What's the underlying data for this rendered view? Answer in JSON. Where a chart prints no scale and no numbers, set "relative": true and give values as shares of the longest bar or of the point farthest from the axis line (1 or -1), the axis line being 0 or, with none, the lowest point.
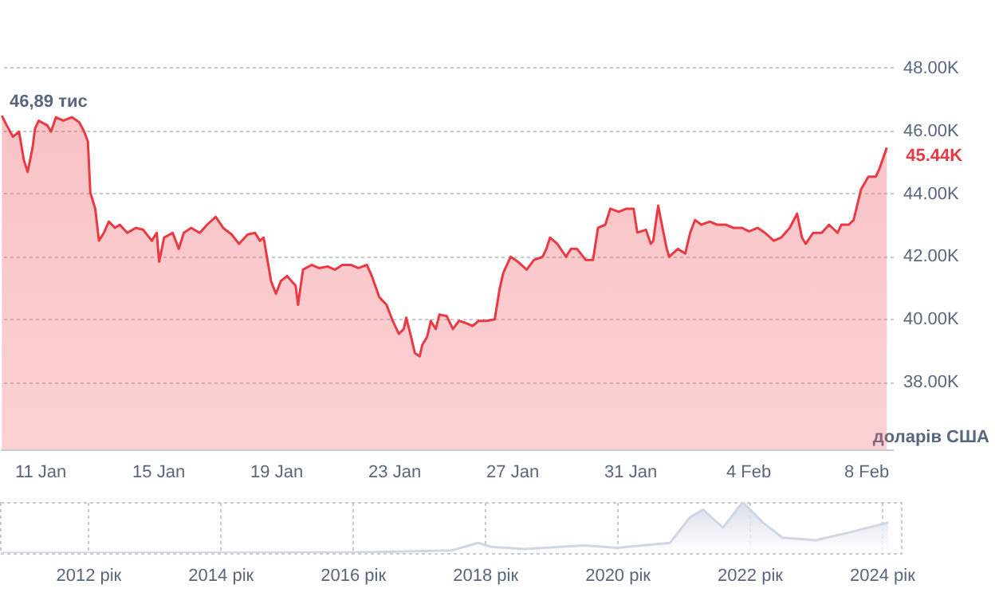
{
  "chart_data": [
    {
      "type": "area",
      "ylabel": "доларів США",
      "grid": "y",
      "x": [
        "2024-01-09T17:00",
        "2024-01-09T21:00",
        "2024-01-10T02:00",
        "2024-01-10T07:00",
        "2024-01-10T11:00",
        "2024-01-10T14:00",
        "2024-01-10T18:00",
        "2024-01-10T20:00",
        "2024-01-10T23:00",
        "2024-01-11T06:00",
        "2024-01-11T09:00",
        "2024-01-11T13:00",
        "2024-01-11T19:00",
        "2024-01-12T02:00",
        "2024-01-12T08:00",
        "2024-01-12T12:00",
        "2024-01-12T15:00",
        "2024-01-12T17:00",
        "2024-01-12T21:00",
        "2024-01-13T00:00",
        "2024-01-13T04:00",
        "2024-01-13T08:00",
        "2024-01-13T13:00",
        "2024-01-13T17:00",
        "2024-01-13T23:00",
        "2024-01-14T06:00",
        "2024-01-14T12:00",
        "2024-01-14T19:00",
        "2024-01-14T23:00",
        "2024-01-15T01:00",
        "2024-01-15T05:00",
        "2024-01-15T12:00",
        "2024-01-15T17:00",
        "2024-01-15T21:00",
        "2024-01-16T03:00",
        "2024-01-16T10:00",
        "2024-01-16T16:00",
        "2024-01-16T23:00",
        "2024-01-17T05:00",
        "2024-01-17T12:00",
        "2024-01-17T18:00",
        "2024-01-18T01:00",
        "2024-01-18T07:00",
        "2024-01-18T11:00",
        "2024-01-18T14:00",
        "2024-01-18T20:00",
        "2024-01-19T00:00",
        "2024-01-19T04:00",
        "2024-01-19T09:00",
        "2024-01-19T16:00",
        "2024-01-19T18:00",
        "2024-01-19T22:00",
        "2024-01-20T05:00",
        "2024-01-20T11:00",
        "2024-01-20T18:00",
        "2024-01-21T00:00",
        "2024-01-21T06:00",
        "2024-01-21T13:00",
        "2024-01-21T19:00",
        "2024-01-22T02:00",
        "2024-01-22T06:00",
        "2024-01-22T12:00",
        "2024-01-22T18:00",
        "2024-01-22T23:00",
        "2024-01-23T04:00",
        "2024-01-23T08:00",
        "2024-01-23T10:00",
        "2024-01-23T14:00",
        "2024-01-23T17:00",
        "2024-01-23T21:00",
        "2024-01-23T23:00",
        "2024-01-24T03:00",
        "2024-01-24T06:00",
        "2024-01-24T10:00",
        "2024-01-24T13:00",
        "2024-01-24T19:00",
        "2024-01-25T00:00",
        "2024-01-25T05:00",
        "2024-01-25T10:00",
        "2024-01-25T16:00",
        "2024-01-25T21:00",
        "2024-01-26T03:00",
        "2024-01-26T10:00",
        "2024-01-26T14:00",
        "2024-01-26T17:00",
        "2024-01-26T23:00",
        "2024-01-27T05:00",
        "2024-01-27T12:00",
        "2024-01-27T18:00",
        "2024-01-28T01:00",
        "2024-01-28T04:00",
        "2024-01-28T07:00",
        "2024-01-28T13:00",
        "2024-01-28T20:00",
        "2024-01-29T00:00",
        "2024-01-29T05:00",
        "2024-01-29T12:00",
        "2024-01-29T18:00",
        "2024-01-29T22:00",
        "2024-01-30T04:00",
        "2024-01-30T08:00",
        "2024-01-30T15:00",
        "2024-01-30T21:00",
        "2024-01-31T03:00",
        "2024-01-31T06:00",
        "2024-01-31T13:00",
        "2024-01-31T17:00",
        "2024-01-31T19:00",
        "2024-01-31T23:00",
        "2024-02-01T02:00",
        "2024-02-01T06:00",
        "2024-02-01T08:00",
        "2024-02-01T15:00",
        "2024-02-01T21:00",
        "2024-02-02T01:00",
        "2024-02-02T05:00",
        "2024-02-02T10:00",
        "2024-02-02T17:00",
        "2024-02-02T23:00",
        "2024-02-03T06:00",
        "2024-02-03T12:00",
        "2024-02-03T19:00",
        "2024-02-04T01:00",
        "2024-02-04T08:00",
        "2024-02-04T14:00",
        "2024-02-04T21:00",
        "2024-02-05T03:00",
        "2024-02-05T10:00",
        "2024-02-05T16:00",
        "2024-02-05T20:00",
        "2024-02-05T23:00",
        "2024-02-06T05:00",
        "2024-02-06T12:00",
        "2024-02-06T18:00",
        "2024-02-07T01:00",
        "2024-02-07T04:00",
        "2024-02-07T10:00",
        "2024-02-07T14:00",
        "2024-02-07T20:00",
        "2024-02-08T02:00",
        "2024-02-08T08:00",
        "2024-02-08T11:00",
        "2024-02-08T17:00"
      ],
      "series": [
        {
          "color": "#ea3943",
          "values": [
            46470,
            46160,
            45800,
            45960,
            45040,
            44680,
            45450,
            46060,
            46310,
            46160,
            45960,
            46420,
            46310,
            46420,
            46260,
            45960,
            45650,
            44020,
            43510,
            42490,
            42740,
            43100,
            42900,
            43000,
            42740,
            42900,
            42840,
            42490,
            42740,
            41820,
            42590,
            42740,
            42230,
            42740,
            42900,
            42740,
            43000,
            43250,
            42900,
            42690,
            42390,
            42690,
            42740,
            42490,
            42590,
            41210,
            40800,
            41210,
            41370,
            41060,
            40450,
            41570,
            41720,
            41620,
            41670,
            41570,
            41720,
            41720,
            41620,
            41720,
            41370,
            40700,
            40450,
            39940,
            39530,
            39680,
            40040,
            39430,
            38920,
            38810,
            39170,
            39430,
            39940,
            39680,
            40140,
            40090,
            39680,
            39940,
            39880,
            39780,
            39940,
            39940,
            39990,
            40960,
            41470,
            41980,
            41820,
            41570,
            41880,
            41980,
            42230,
            42590,
            42390,
            41980,
            42230,
            42230,
            41880,
            41880,
            42900,
            43000,
            43510,
            43410,
            43510,
            43510,
            42750,
            42840,
            42390,
            42490,
            43610,
            43000,
            42230,
            41980,
            42230,
            42080,
            42740,
            43150,
            43000,
            43100,
            43000,
            43000,
            42900,
            42900,
            42790,
            42900,
            42740,
            42490,
            42590,
            42900,
            43350,
            42590,
            42390,
            42740,
            42740,
            43000,
            42740,
            43000,
            43000,
            43150,
            44120,
            44530,
            44530,
            44780,
            45450
          ]
        }
      ],
      "xlim": [
        "2024-01-09T15:30",
        "2024-02-08T22:00"
      ],
      "xticks": [
        {
          "value": "2024-01-11",
          "label": "11 Jan"
        },
        {
          "value": "2024-01-15",
          "label": "15 Jan"
        },
        {
          "value": "2024-01-19",
          "label": "19 Jan"
        },
        {
          "value": "2024-01-23",
          "label": "23 Jan"
        },
        {
          "value": "2024-01-27",
          "label": "27 Jan"
        },
        {
          "value": "2024-01-31",
          "label": "31 Jan"
        },
        {
          "value": "2024-02-04",
          "label": "4 Feb"
        },
        {
          "value": "2024-02-08",
          "label": "8 Feb"
        }
      ],
      "ylim": [
        35850,
        50150
      ],
      "yticks": [
        {
          "value": 38000,
          "label": "38.00K"
        },
        {
          "value": 40000,
          "label": "40.00K"
        },
        {
          "value": 42000,
          "label": "42.00K"
        },
        {
          "value": 44000,
          "label": "44.00K"
        },
        {
          "value": 46000,
          "label": "46.00K"
        },
        {
          "value": 48000,
          "label": "48.00K"
        }
      ],
      "annotations": [
        "46,89 тис",
        {
          "text": "45.44K",
          "x": "2024-02-08T17:00",
          "y": 45440
        }
      ]
    },
    {
      "type": "area",
      "relative": true,
      "grid": "x",
      "x": [
        2010.7,
        2016,
        2017.5,
        2017.9,
        2018.1,
        2018.6,
        2019.5,
        2020,
        2020.8,
        2021.1,
        2021.3,
        2021.6,
        2021.9,
        2022.2,
        2022.5,
        2023,
        2023.5,
        2024.1
      ],
      "series": [
        {
          "color": "#cfd6e4",
          "values": [
            0,
            0.01,
            0.05,
            0.2,
            0.12,
            0.08,
            0.15,
            0.1,
            0.2,
            0.7,
            0.85,
            0.5,
            1,
            0.6,
            0.3,
            0.25,
            0.4,
            0.6
          ]
        }
      ],
      "xlim": [
        2010.67,
        2024.29
      ],
      "xticks": [
        {
          "value": 2012,
          "label": "2012 рік"
        },
        {
          "value": 2014,
          "label": "2014 рік"
        },
        {
          "value": 2016,
          "label": "2016 рік"
        },
        {
          "value": 2018,
          "label": "2018 рік"
        },
        {
          "value": 2020,
          "label": "2020 рік"
        },
        {
          "value": 2022,
          "label": "2022 рік"
        },
        {
          "value": 2024,
          "label": "2024 рік"
        }
      ]
    }
  ]
}
